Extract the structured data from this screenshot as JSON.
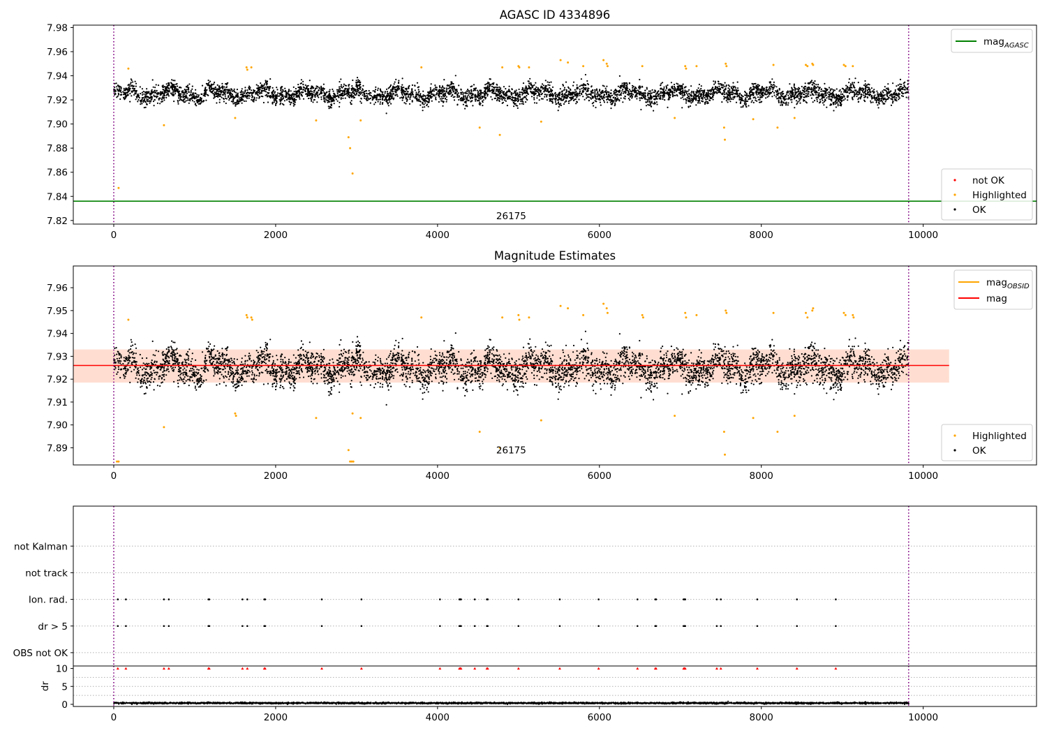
{
  "chart_data": [
    {
      "id": "top",
      "type": "scatter",
      "title": "AGASC ID 4334896",
      "xlim": [
        -500,
        11400
      ],
      "ylim": [
        7.817,
        7.982
      ],
      "xticks": [
        0,
        2000,
        4000,
        6000,
        8000,
        10000
      ],
      "yticks": [
        7.82,
        7.84,
        7.86,
        7.88,
        7.9,
        7.92,
        7.94,
        7.96,
        7.98
      ],
      "ytick_labels": [
        "7.82",
        "7.84",
        "7.86",
        "7.88",
        "7.90",
        "7.92",
        "7.94",
        "7.96",
        "7.98"
      ],
      "vlines": [
        0,
        9820
      ],
      "hlines": [
        {
          "name": "mag_AGASC",
          "y": 7.836,
          "x": [
            -500,
            11400
          ],
          "color": "#008000"
        }
      ],
      "annotations": [
        {
          "text": "26175",
          "x": 4910,
          "y": 7.821
        }
      ],
      "legend_lines": {
        "position": "upper right",
        "entries": [
          {
            "label": "mag",
            "sub": "AGASC",
            "color": "#008000"
          }
        ]
      },
      "legend_points": {
        "position": "lower right",
        "entries": [
          {
            "label": "not OK",
            "color": "#ff0000"
          },
          {
            "label": "Highlighted",
            "color": "#ffa500"
          },
          {
            "label": "OK",
            "color": "#000000"
          }
        ]
      },
      "series": [
        {
          "name": "OK",
          "color": "#000000",
          "generated": {
            "count": 5200,
            "x": [
              0,
              9820
            ],
            "center": 7.925,
            "amplitude": 0.005,
            "noise": 0.007
          }
        },
        {
          "name": "Highlighted",
          "color": "#ffa500",
          "points": [
            [
              60,
              7.847
            ],
            [
              180,
              7.946
            ],
            [
              620,
              7.899
            ],
            [
              1500,
              7.905
            ],
            [
              1640,
              7.947
            ],
            [
              1650,
              7.945
            ],
            [
              1700,
              7.947
            ],
            [
              2500,
              7.903
            ],
            [
              2900,
              7.889
            ],
            [
              2920,
              7.88
            ],
            [
              2950,
              7.859
            ],
            [
              3050,
              7.903
            ],
            [
              3800,
              7.947
            ],
            [
              4520,
              7.897
            ],
            [
              4770,
              7.891
            ],
            [
              4800,
              7.947
            ],
            [
              5000,
              7.948
            ],
            [
              5010,
              7.947
            ],
            [
              5130,
              7.947
            ],
            [
              5280,
              7.902
            ],
            [
              5520,
              7.953
            ],
            [
              5610,
              7.951
            ],
            [
              5800,
              7.948
            ],
            [
              6050,
              7.953
            ],
            [
              6090,
              7.95
            ],
            [
              6100,
              7.948
            ],
            [
              6530,
              7.948
            ],
            [
              6930,
              7.905
            ],
            [
              7060,
              7.948
            ],
            [
              7070,
              7.946
            ],
            [
              7200,
              7.948
            ],
            [
              7540,
              7.897
            ],
            [
              7550,
              7.887
            ],
            [
              7560,
              7.95
            ],
            [
              7570,
              7.948
            ],
            [
              7900,
              7.904
            ],
            [
              8150,
              7.949
            ],
            [
              8200,
              7.897
            ],
            [
              8410,
              7.905
            ],
            [
              8550,
              7.949
            ],
            [
              8570,
              7.948
            ],
            [
              8630,
              7.95
            ],
            [
              8640,
              7.949
            ],
            [
              9020,
              7.949
            ],
            [
              9040,
              7.948
            ],
            [
              9130,
              7.948
            ]
          ]
        },
        {
          "name": "not OK",
          "color": "#ff0000",
          "points": []
        }
      ]
    },
    {
      "id": "middle",
      "type": "scatter",
      "title": "Magnitude Estimates",
      "xlim": [
        -500,
        11400
      ],
      "ylim": [
        7.8825,
        7.9695
      ],
      "xticks": [
        0,
        2000,
        4000,
        6000,
        8000,
        10000
      ],
      "yticks": [
        7.89,
        7.9,
        7.91,
        7.92,
        7.93,
        7.94,
        7.95,
        7.96
      ],
      "ytick_labels": [
        "7.89",
        "7.90",
        "7.91",
        "7.92",
        "7.93",
        "7.94",
        "7.95",
        "7.96"
      ],
      "vlines": [
        0,
        9820
      ],
      "band": {
        "x": [
          -500,
          10320
        ],
        "y": [
          7.9185,
          7.933
        ],
        "color": "#ff0000",
        "opacity": 0.11
      },
      "band_inner": {
        "x": [
          -500,
          10320
        ],
        "y": [
          7.9185,
          7.933
        ],
        "color": "#ffa500",
        "opacity": 0.08
      },
      "hlines": [
        {
          "name": "mag",
          "y": 7.926,
          "x": [
            -500,
            10320
          ],
          "color": "#ff0000"
        }
      ],
      "annotations": [
        {
          "text": "26175",
          "x": 4910,
          "y": 7.8875
        }
      ],
      "legend_lines": {
        "position": "upper right",
        "entries": [
          {
            "label": "mag",
            "sub": "OBSID",
            "color": "#ffa500"
          },
          {
            "label": "mag",
            "sub": "",
            "color": "#ff0000"
          }
        ]
      },
      "legend_points": {
        "position": "lower right",
        "entries": [
          {
            "label": "Highlighted",
            "color": "#ffa500"
          },
          {
            "label": "OK",
            "color": "#000000"
          }
        ]
      },
      "series": [
        {
          "name": "OK",
          "color": "#000000",
          "generated": {
            "count": 5200,
            "x": [
              0,
              9820
            ],
            "center": 7.925,
            "amplitude": 0.005,
            "noise": 0.007
          }
        },
        {
          "name": "Highlighted",
          "color": "#ffa500",
          "points": [
            [
              40,
              7.884
            ],
            [
              60,
              7.884
            ],
            [
              180,
              7.946
            ],
            [
              620,
              7.899
            ],
            [
              1500,
              7.905
            ],
            [
              1510,
              7.904
            ],
            [
              1640,
              7.948
            ],
            [
              1650,
              7.947
            ],
            [
              1700,
              7.947
            ],
            [
              1710,
              7.946
            ],
            [
              2500,
              7.903
            ],
            [
              2900,
              7.889
            ],
            [
              2920,
              7.884
            ],
            [
              2940,
              7.884
            ],
            [
              2960,
              7.884
            ],
            [
              2950,
              7.905
            ],
            [
              3050,
              7.903
            ],
            [
              3800,
              7.947
            ],
            [
              4520,
              7.897
            ],
            [
              4770,
              7.89
            ],
            [
              4800,
              7.947
            ],
            [
              5000,
              7.948
            ],
            [
              5010,
              7.946
            ],
            [
              5130,
              7.947
            ],
            [
              5280,
              7.902
            ],
            [
              5520,
              7.952
            ],
            [
              5610,
              7.951
            ],
            [
              5800,
              7.948
            ],
            [
              6050,
              7.953
            ],
            [
              6090,
              7.951
            ],
            [
              6100,
              7.949
            ],
            [
              6530,
              7.948
            ],
            [
              6540,
              7.947
            ],
            [
              6930,
              7.904
            ],
            [
              7060,
              7.949
            ],
            [
              7070,
              7.947
            ],
            [
              7200,
              7.948
            ],
            [
              7540,
              7.897
            ],
            [
              7550,
              7.887
            ],
            [
              7560,
              7.95
            ],
            [
              7570,
              7.949
            ],
            [
              7900,
              7.903
            ],
            [
              8150,
              7.949
            ],
            [
              8200,
              7.897
            ],
            [
              8410,
              7.904
            ],
            [
              8550,
              7.949
            ],
            [
              8570,
              7.947
            ],
            [
              8630,
              7.95
            ],
            [
              8640,
              7.951
            ],
            [
              9020,
              7.949
            ],
            [
              9040,
              7.948
            ],
            [
              9130,
              7.948
            ],
            [
              9140,
              7.947
            ]
          ]
        }
      ]
    },
    {
      "id": "flags",
      "type": "scatter",
      "title": "",
      "xlim": [
        -500,
        11400
      ],
      "ylim": [
        -0.5,
        5.5
      ],
      "vlines": [
        0,
        9820
      ],
      "categories": [
        "OBS not OK",
        "dr > 5",
        "Ion. rad.",
        "not track",
        "not Kalman"
      ],
      "flag_x": [
        50,
        150,
        620,
        680,
        1170,
        1180,
        1590,
        1650,
        1860,
        1870,
        2570,
        3060,
        4030,
        4270,
        4280,
        4290,
        4460,
        4610,
        4620,
        5000,
        5510,
        5990,
        6470,
        6690,
        6700,
        7040,
        7050,
        7060,
        7450,
        7500,
        7950,
        8440,
        8920
      ],
      "flagged_categories": [
        "dr > 5",
        "Ion. rad."
      ]
    },
    {
      "id": "dr",
      "type": "scatter",
      "title": "",
      "ylabel": "dr",
      "xlim": [
        -500,
        11400
      ],
      "ylim": [
        -0.6,
        10.7
      ],
      "xticks": [
        0,
        2000,
        4000,
        6000,
        8000,
        10000
      ],
      "yticks": [
        0,
        5,
        10
      ],
      "ytick_labels": [
        "0",
        "5",
        "10"
      ],
      "vlines": [
        0,
        9820
      ],
      "clip_marker_y": 10,
      "series": [
        {
          "name": "OK",
          "color": "#000000",
          "generated": {
            "count": 3500,
            "x": [
              0,
              9820
            ],
            "center": 0.35,
            "amplitude": 0,
            "noise": 0.2
          }
        },
        {
          "name": "clipped",
          "color": "#ff0000",
          "x": [
            50,
            150,
            620,
            680,
            1170,
            1180,
            1590,
            1650,
            1860,
            1870,
            2570,
            3060,
            4030,
            4270,
            4280,
            4290,
            4460,
            4610,
            4620,
            5000,
            5510,
            5990,
            6470,
            6690,
            6700,
            7040,
            7050,
            7060,
            7450,
            7500,
            7950,
            8440,
            8920
          ]
        }
      ]
    }
  ]
}
